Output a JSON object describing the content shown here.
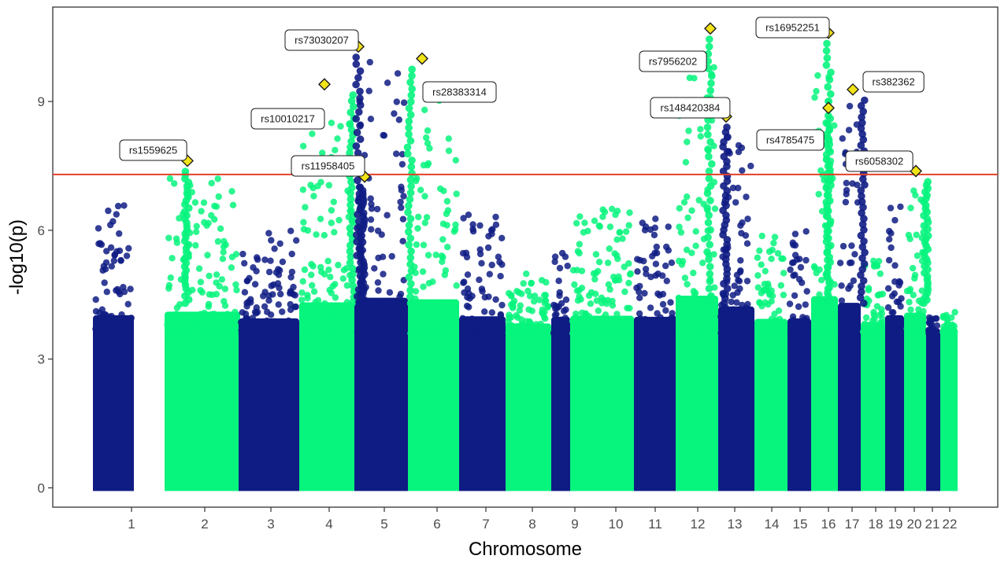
{
  "chart_data": {
    "type": "scatter",
    "title": "",
    "xlabel": "Chromosome",
    "ylabel": "-log10(p)",
    "ylim": [
      -0.45,
      11.2
    ],
    "y_ticks": [
      0,
      3,
      6,
      9
    ],
    "grid": false,
    "colors": {
      "odd": "#0f1c84",
      "even": "#07f47d",
      "threshold": "#e3412a",
      "highlight": "#f2e318"
    },
    "threshold": 7.3,
    "chromosomes": [
      {
        "label": "1",
        "height": 6.9
      },
      {
        "label": "2",
        "height": 7.6
      },
      {
        "label": "3",
        "height": 6.3
      },
      {
        "label": "4",
        "height": 9.4
      },
      {
        "label": "5",
        "height": 10.3
      },
      {
        "label": "6",
        "height": 10.0
      },
      {
        "label": "7",
        "height": 6.7
      },
      {
        "label": "8",
        "height": 5.3
      },
      {
        "label": "9",
        "height": 6.6
      },
      {
        "label": "10",
        "height": 6.8
      },
      {
        "label": "11",
        "height": 6.6
      },
      {
        "label": "12",
        "height": 10.7
      },
      {
        "label": "13",
        "height": 8.6
      },
      {
        "label": "14",
        "height": 6.2
      },
      {
        "label": "15",
        "height": 6.3
      },
      {
        "label": "16",
        "height": 10.6
      },
      {
        "label": "17",
        "height": 9.3
      },
      {
        "label": "18",
        "height": 5.6
      },
      {
        "label": "19",
        "height": 6.9
      },
      {
        "label": "20",
        "height": 7.4
      },
      {
        "label": "21",
        "height": 4.3
      },
      {
        "label": "22",
        "height": 4.5
      }
    ],
    "highlights": [
      {
        "snp": "rs1559625",
        "chromosome": "2",
        "y": 7.62
      },
      {
        "snp": "rs10010217",
        "chromosome": "4",
        "y": 9.4
      },
      {
        "snp": "rs73030207",
        "chromosome": "5",
        "y": 10.28
      },
      {
        "snp": "rs11958405",
        "chromosome": "5",
        "y": 7.25
      },
      {
        "snp": "rs28383314",
        "chromosome": "6",
        "y": 10.0
      },
      {
        "snp": "rs7956202",
        "chromosome": "12",
        "y": 10.7
      },
      {
        "snp": "rs148420384",
        "chromosome": "13",
        "y": 8.65
      },
      {
        "snp": "rs16952251",
        "chromosome": "16",
        "y": 10.6
      },
      {
        "snp": "rs4785475",
        "chromosome": "16",
        "y": 8.85
      },
      {
        "snp": "rs382362",
        "chromosome": "17",
        "y": 9.28
      },
      {
        "snp": "rs6058302",
        "chromosome": "20",
        "y": 7.38
      }
    ]
  }
}
